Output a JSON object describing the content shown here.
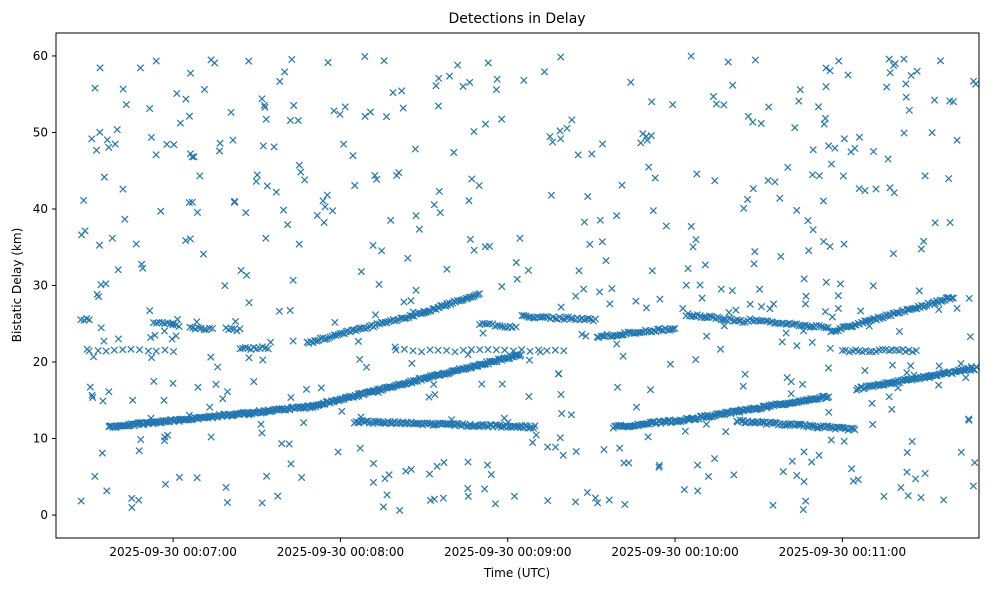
{
  "chart_data": {
    "type": "scatter",
    "title": "Detections in Delay",
    "xlabel": "Time (UTC)",
    "ylabel": "Bistatic Delay (km)",
    "x_unit": "seconds after 2025-09-30 00:06:00 UTC",
    "xlim": [
      18,
      349
    ],
    "ylim": [
      -3,
      63
    ],
    "grid": false,
    "legend": "none",
    "marker": "x",
    "color": "#1f77b4",
    "x_ticks": [
      {
        "value": 60,
        "label": "2025-09-30 00:07:00"
      },
      {
        "value": 120,
        "label": "2025-09-30 00:08:00"
      },
      {
        "value": 180,
        "label": "2025-09-30 00:09:00"
      },
      {
        "value": 240,
        "label": "2025-09-30 00:10:00"
      },
      {
        "value": 300,
        "label": "2025-09-30 00:11:00"
      }
    ],
    "y_ticks": [
      {
        "value": 0,
        "label": "0"
      },
      {
        "value": 10,
        "label": "10"
      },
      {
        "value": 20,
        "label": "20"
      },
      {
        "value": 30,
        "label": "30"
      },
      {
        "value": 40,
        "label": "40"
      },
      {
        "value": 50,
        "label": "50"
      },
      {
        "value": 60,
        "label": "60"
      }
    ],
    "tracks": [
      {
        "x_start": 27,
        "x_end": 30,
        "y_start": 25.5,
        "y_end": 25.5,
        "step": 1.0
      },
      {
        "x_start": 53,
        "x_end": 62,
        "y_start": 25.2,
        "y_end": 24.8,
        "step": 1.0
      },
      {
        "x_start": 66,
        "x_end": 74,
        "y_start": 24.5,
        "y_end": 24.3,
        "step": 1.0
      },
      {
        "x_start": 79,
        "x_end": 84,
        "y_start": 24.3,
        "y_end": 24.2,
        "step": 1.0
      },
      {
        "x_start": 84,
        "x_end": 94,
        "y_start": 21.7,
        "y_end": 21.9,
        "step": 1.0
      },
      {
        "x_start": 108,
        "x_end": 150,
        "y_start": 22.5,
        "y_end": 26.5,
        "step": 0.7
      },
      {
        "x_start": 150,
        "x_end": 170,
        "y_start": 26.5,
        "y_end": 29.0,
        "step": 0.6
      },
      {
        "x_start": 170,
        "x_end": 182,
        "y_start": 25.0,
        "y_end": 24.5,
        "step": 0.9
      },
      {
        "x_start": 185,
        "x_end": 212,
        "y_start": 26.0,
        "y_end": 25.5,
        "step": 0.8
      },
      {
        "x_start": 212,
        "x_end": 240,
        "y_start": 23.3,
        "y_end": 24.4,
        "step": 0.7
      },
      {
        "x_start": 244,
        "x_end": 265,
        "y_start": 26.2,
        "y_end": 25.3,
        "step": 0.7
      },
      {
        "x_start": 266,
        "x_end": 295,
        "y_start": 25.5,
        "y_end": 24.5,
        "step": 0.8
      },
      {
        "x_start": 296,
        "x_end": 340,
        "y_start": 24.0,
        "y_end": 28.5,
        "step": 0.6
      },
      {
        "x_start": 37,
        "x_end": 110,
        "y_start": 11.5,
        "y_end": 14.2,
        "step": 0.45
      },
      {
        "x_start": 110,
        "x_end": 185,
        "y_start": 14.2,
        "y_end": 21.0,
        "step": 0.45
      },
      {
        "x_start": 125,
        "x_end": 190,
        "y_start": 12.2,
        "y_end": 11.5,
        "step": 0.6
      },
      {
        "x_start": 218,
        "x_end": 245,
        "y_start": 11.5,
        "y_end": 12.5,
        "step": 0.5
      },
      {
        "x_start": 245,
        "x_end": 295,
        "y_start": 12.5,
        "y_end": 15.5,
        "step": 0.45
      },
      {
        "x_start": 262,
        "x_end": 305,
        "y_start": 12.3,
        "y_end": 11.2,
        "step": 0.6
      },
      {
        "x_start": 305,
        "x_end": 348,
        "y_start": 16.5,
        "y_end": 19.2,
        "step": 0.5
      },
      {
        "x_start": 300,
        "x_end": 327,
        "y_start": 21.5,
        "y_end": 21.5,
        "step": 1.2
      },
      {
        "x_start": 30,
        "x_end": 60,
        "y_start": 21.5,
        "y_end": 21.5,
        "step": 3.0
      },
      {
        "x_start": 140,
        "x_end": 200,
        "y_start": 21.5,
        "y_end": 21.5,
        "step": 3.0
      }
    ],
    "clutter": {
      "count": 560,
      "x_range": [
        27,
        348
      ],
      "y_range": [
        0.5,
        60
      ]
    }
  }
}
